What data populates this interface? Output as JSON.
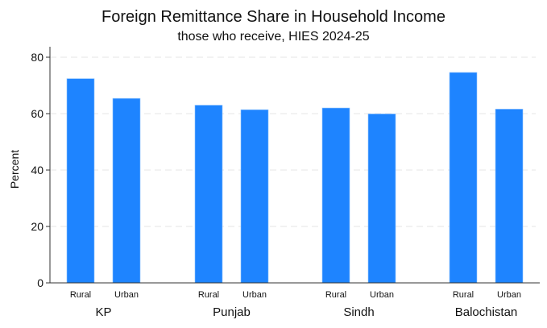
{
  "chart": {
    "title": "Foreign Remittance Share in Household Income",
    "subtitle": "those who receive, HIES 2024-25",
    "ylabel": "Percent",
    "bar_color": "#1e84ff"
  },
  "chart_data": {
    "type": "bar",
    "title": "Foreign Remittance Share in Household Income",
    "subtitle": "those who receive, HIES 2024-25",
    "xlabel": "",
    "ylabel": "Percent",
    "ylim": [
      0,
      83
    ],
    "yticks": [
      0,
      20,
      40,
      60,
      80
    ],
    "grid": true,
    "legend": null,
    "groups": [
      "KP",
      "Punjab",
      "Sindh",
      "Balochistan"
    ],
    "subcategories": [
      "Rural",
      "Urban"
    ],
    "series": [
      {
        "name": "Rural",
        "values": [
          72.4,
          63.0,
          62.0,
          74.6
        ]
      },
      {
        "name": "Urban",
        "values": [
          65.4,
          61.4,
          59.9,
          61.6
        ]
      }
    ]
  }
}
